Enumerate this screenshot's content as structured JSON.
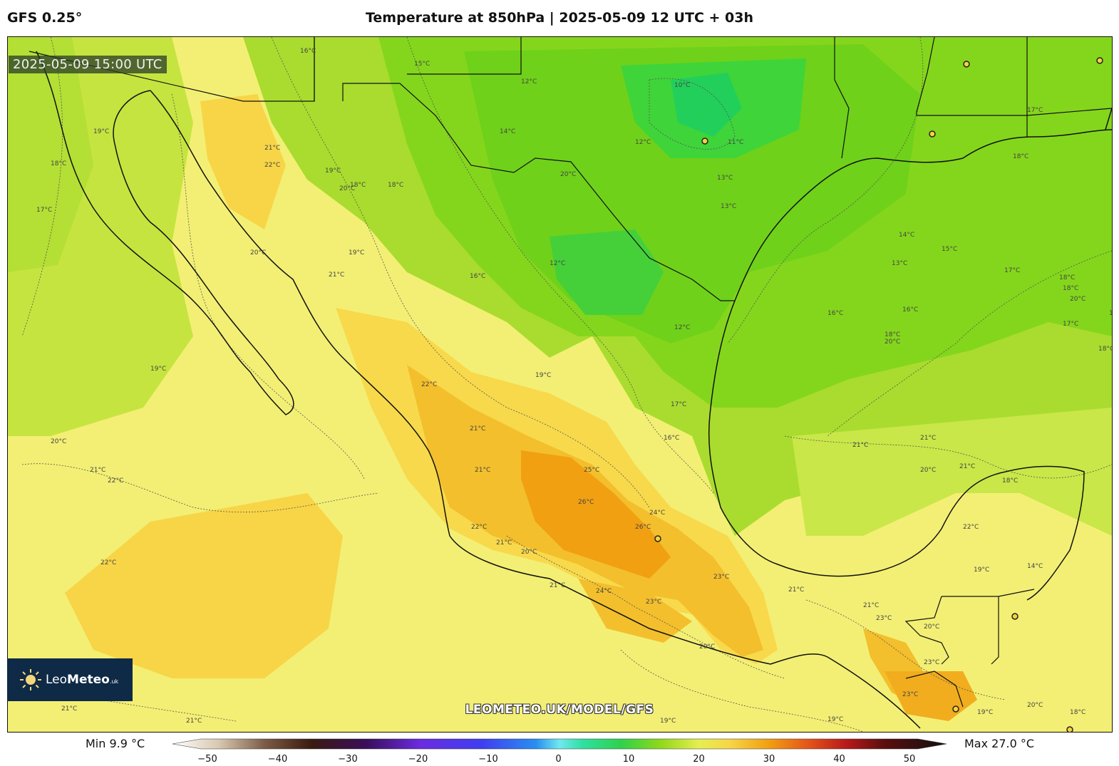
{
  "header": {
    "model": "GFS 0.25°",
    "title": "Temperature at 850hPa | 2025-05-09 12 UTC + 03h"
  },
  "map": {
    "valid_time": "2025-05-09 15:00 UTC",
    "watermark": "LEOMETEO.UK/MODEL/GFS",
    "logo": {
      "name_light": "Leo",
      "name_bold": "Meteo",
      "suffix": ".uk"
    },
    "contour_labels": [
      "16°C",
      "15°C",
      "12°C",
      "10°C",
      "12°C",
      "11°C",
      "14°C",
      "13°C",
      "19°C",
      "18°C",
      "17°C",
      "21°C",
      "22°C",
      "19°C",
      "20°C",
      "18°C",
      "18°C",
      "20°C",
      "19°C",
      "21°C",
      "16°C",
      "12°C",
      "13°C",
      "15°C",
      "16°C",
      "16°C",
      "18°C",
      "17°C",
      "18°C",
      "17°C",
      "18°C",
      "22°C",
      "12°C",
      "19°C",
      "19°C",
      "17°C",
      "16°C",
      "21°C",
      "21°C",
      "20°C",
      "21°C",
      "22°C",
      "25°C",
      "26°C",
      "24°C",
      "26°C",
      "22°C",
      "21°C",
      "20°C",
      "21°C",
      "21°C",
      "24°C",
      "23°C",
      "23°C",
      "21°C",
      "20°C",
      "19°C",
      "20°C",
      "21°C",
      "18°C",
      "21°C",
      "23°C",
      "20°C",
      "23°C",
      "23°C",
      "19°C",
      "19°C",
      "20°C",
      "19°C",
      "18°C",
      "22°C",
      "21°C",
      "21°C",
      "19°C",
      "14°C",
      "17°C",
      "18°C",
      "18°C",
      "13°C",
      "13°C",
      "14°C",
      "20°C",
      "21°C",
      "22°C",
      "20°C",
      "19°C",
      "20°C"
    ]
  },
  "legend": {
    "min_label": "Min 9.9 °C",
    "max_label": "Max 27.0 °C",
    "tick_labels": [
      "−50",
      "−40",
      "−30",
      "−20",
      "−10",
      "0",
      "10",
      "20",
      "30",
      "40",
      "50"
    ]
  },
  "colors": {
    "cold_green": "#2fd14a",
    "green": "#6fd11a",
    "yellow_green": "#b9e436",
    "yellow": "#f2ef6a",
    "gold": "#f7d547",
    "orange": "#f1a012"
  }
}
